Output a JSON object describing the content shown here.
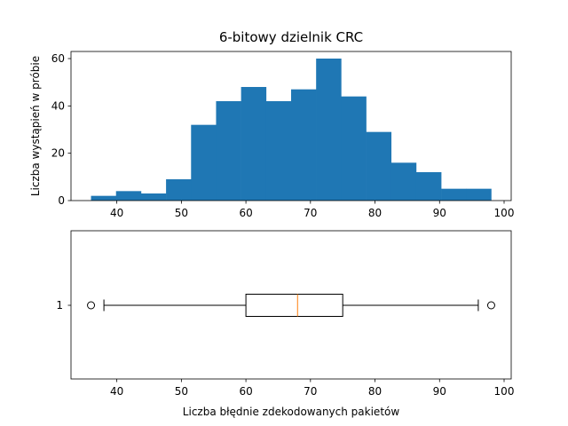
{
  "chart_data": [
    {
      "type": "bar",
      "subtype": "histogram",
      "title": "6-bitowy dzielnik CRC",
      "xlabel": "",
      "ylabel": "Liczba wystąpień w próbie",
      "bin_edges": [
        36,
        39.875,
        43.75,
        47.625,
        51.5,
        55.375,
        59.25,
        63.125,
        67,
        70.875,
        74.75,
        78.625,
        82.5,
        86.375,
        90.25,
        94.125,
        98
      ],
      "values": [
        2,
        4,
        3,
        9,
        32,
        42,
        48,
        42,
        47,
        60,
        44,
        29,
        16,
        12,
        5,
        5
      ],
      "xlim": [
        32.9,
        101.1
      ],
      "ylim": [
        0,
        63
      ],
      "xticks": [
        40,
        50,
        60,
        70,
        80,
        90,
        100
      ],
      "yticks": [
        0,
        20,
        40,
        60
      ],
      "color": "#1f77b4",
      "grid": false
    },
    {
      "type": "boxplot",
      "orientation": "horizontal",
      "xlabel": "Liczba błędnie zdekodowanych pakietów",
      "ylabel": "",
      "category_labels": [
        "1"
      ],
      "stats": {
        "whisker_low": 38,
        "q1": 60,
        "median": 68,
        "q3": 75,
        "whisker_high": 96,
        "fliers": [
          36,
          98
        ]
      },
      "xlim": [
        32.9,
        101.1
      ],
      "xticks": [
        40,
        50,
        60,
        70,
        80,
        90,
        100
      ],
      "median_color": "#ff7f0e",
      "grid": false
    }
  ]
}
